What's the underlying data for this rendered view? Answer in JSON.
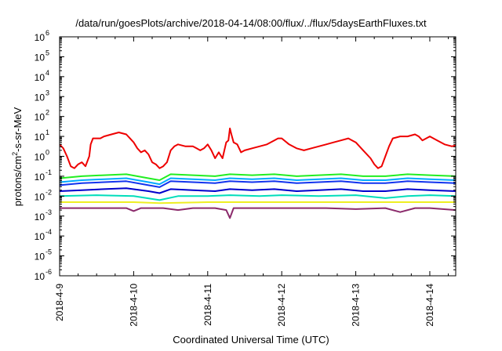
{
  "chart_data": {
    "type": "line",
    "title": "/data/run/goesPlots/archive/2018-04-14/08:00/flux/../flux/5daysEarthFluxes.txt",
    "xlabel": "Coordinated Universal Time (UTC)",
    "ylabel_parts": [
      "protons/cm",
      "2",
      "-s-sr-MeV"
    ],
    "yscale": "log",
    "ylim_exp": [
      -6,
      6
    ],
    "y_ticks": [
      {
        "base": "10",
        "exp": "6"
      },
      {
        "base": "10",
        "exp": "5"
      },
      {
        "base": "10",
        "exp": "4"
      },
      {
        "base": "10",
        "exp": "3"
      },
      {
        "base": "10",
        "exp": "2"
      },
      {
        "base": "10",
        "exp": "1"
      },
      {
        "base": "10",
        "exp": "0"
      },
      {
        "base": "10",
        "exp": "-1"
      },
      {
        "base": "10",
        "exp": "-2"
      },
      {
        "base": "10",
        "exp": "-3"
      },
      {
        "base": "10",
        "exp": "-4"
      },
      {
        "base": "10",
        "exp": "-5"
      },
      {
        "base": "10",
        "exp": "-6"
      }
    ],
    "xlim_days": [
      0,
      5.35
    ],
    "x_ticks": [
      {
        "label": "2018-4-9",
        "day": 0
      },
      {
        "label": "2018-4-10",
        "day": 1
      },
      {
        "label": "2018-4-11",
        "day": 2
      },
      {
        "label": "2018-4-12",
        "day": 3
      },
      {
        "label": "2018-4-13",
        "day": 4
      },
      {
        "label": "2018-4-14",
        "day": 5
      }
    ],
    "grid": false,
    "series": [
      {
        "color": "#ee0000",
        "points": [
          [
            0,
            0.6
          ],
          [
            0.05,
            0.4
          ],
          [
            0.1,
            0
          ],
          [
            0.15,
            -0.5
          ],
          [
            0.2,
            -0.6
          ],
          [
            0.25,
            -0.4
          ],
          [
            0.3,
            -0.3
          ],
          [
            0.35,
            -0.5
          ],
          [
            0.4,
            0
          ],
          [
            0.42,
            0.6
          ],
          [
            0.45,
            0.9
          ],
          [
            0.55,
            0.9
          ],
          [
            0.6,
            1
          ],
          [
            0.7,
            1.1
          ],
          [
            0.8,
            1.2
          ],
          [
            0.9,
            1.1
          ],
          [
            0.95,
            0.9
          ],
          [
            1.0,
            0.7
          ],
          [
            1.05,
            0.4
          ],
          [
            1.1,
            0.2
          ],
          [
            1.15,
            0.3
          ],
          [
            1.2,
            0.1
          ],
          [
            1.25,
            -0.3
          ],
          [
            1.3,
            -0.4
          ],
          [
            1.35,
            -0.6
          ],
          [
            1.4,
            -0.5
          ],
          [
            1.45,
            -0.3
          ],
          [
            1.5,
            0.3
          ],
          [
            1.55,
            0.5
          ],
          [
            1.6,
            0.6
          ],
          [
            1.7,
            0.5
          ],
          [
            1.75,
            0.5
          ],
          [
            1.8,
            0.5
          ],
          [
            1.85,
            0.4
          ],
          [
            1.9,
            0.3
          ],
          [
            1.95,
            0.4
          ],
          [
            2.0,
            0.6
          ],
          [
            2.05,
            0.3
          ],
          [
            2.1,
            -0.1
          ],
          [
            2.15,
            0.2
          ],
          [
            2.2,
            -0.1
          ],
          [
            2.25,
            0.7
          ],
          [
            2.28,
            0.8
          ],
          [
            2.3,
            1.4
          ],
          [
            2.32,
            1.1
          ],
          [
            2.35,
            0.7
          ],
          [
            2.4,
            0.6
          ],
          [
            2.45,
            0.2
          ],
          [
            2.5,
            0.3
          ],
          [
            2.6,
            0.4
          ],
          [
            2.7,
            0.5
          ],
          [
            2.8,
            0.6
          ],
          [
            2.9,
            0.8
          ],
          [
            2.95,
            0.9
          ],
          [
            3.0,
            0.9
          ],
          [
            3.1,
            0.6
          ],
          [
            3.2,
            0.4
          ],
          [
            3.3,
            0.3
          ],
          [
            3.4,
            0.4
          ],
          [
            3.5,
            0.5
          ],
          [
            3.6,
            0.6
          ],
          [
            3.7,
            0.7
          ],
          [
            3.8,
            0.8
          ],
          [
            3.9,
            0.9
          ],
          [
            3.95,
            0.8
          ],
          [
            4.0,
            0.7
          ],
          [
            4.05,
            0.5
          ],
          [
            4.1,
            0.3
          ],
          [
            4.2,
            -0.1
          ],
          [
            4.25,
            -0.4
          ],
          [
            4.3,
            -0.6
          ],
          [
            4.35,
            -0.5
          ],
          [
            4.4,
            0
          ],
          [
            4.45,
            0.5
          ],
          [
            4.5,
            0.9
          ],
          [
            4.6,
            1.0
          ],
          [
            4.7,
            1.0
          ],
          [
            4.8,
            1.1
          ],
          [
            4.85,
            1.0
          ],
          [
            4.9,
            0.8
          ],
          [
            5.0,
            1.0
          ],
          [
            5.1,
            0.8
          ],
          [
            5.2,
            0.6
          ],
          [
            5.3,
            0.5
          ],
          [
            5.35,
            0.55
          ]
        ]
      },
      {
        "color": "#22ee22",
        "points": [
          [
            0,
            -1.1
          ],
          [
            0.3,
            -1.0
          ],
          [
            0.6,
            -0.95
          ],
          [
            0.9,
            -0.9
          ],
          [
            1.2,
            -1.1
          ],
          [
            1.35,
            -1.2
          ],
          [
            1.5,
            -0.9
          ],
          [
            1.8,
            -0.95
          ],
          [
            2.1,
            -1.0
          ],
          [
            2.3,
            -0.9
          ],
          [
            2.6,
            -0.95
          ],
          [
            2.9,
            -0.9
          ],
          [
            3.2,
            -1.0
          ],
          [
            3.5,
            -0.95
          ],
          [
            3.8,
            -0.9
          ],
          [
            4.1,
            -1.0
          ],
          [
            4.4,
            -1.0
          ],
          [
            4.7,
            -0.9
          ],
          [
            5.0,
            -0.95
          ],
          [
            5.35,
            -1.0
          ]
        ]
      },
      {
        "color": "#00aaff",
        "points": [
          [
            0,
            -1.3
          ],
          [
            0.3,
            -1.2
          ],
          [
            0.6,
            -1.15
          ],
          [
            0.9,
            -1.1
          ],
          [
            1.2,
            -1.3
          ],
          [
            1.35,
            -1.4
          ],
          [
            1.5,
            -1.1
          ],
          [
            1.8,
            -1.15
          ],
          [
            2.1,
            -1.2
          ],
          [
            2.3,
            -1.1
          ],
          [
            2.6,
            -1.15
          ],
          [
            2.9,
            -1.1
          ],
          [
            3.2,
            -1.2
          ],
          [
            3.5,
            -1.15
          ],
          [
            3.8,
            -1.1
          ],
          [
            4.1,
            -1.2
          ],
          [
            4.4,
            -1.2
          ],
          [
            4.7,
            -1.1
          ],
          [
            5.0,
            -1.15
          ],
          [
            5.35,
            -1.2
          ]
        ]
      },
      {
        "color": "#1133ee",
        "points": [
          [
            0,
            -1.45
          ],
          [
            0.3,
            -1.35
          ],
          [
            0.6,
            -1.3
          ],
          [
            0.9,
            -1.25
          ],
          [
            1.2,
            -1.45
          ],
          [
            1.35,
            -1.55
          ],
          [
            1.5,
            -1.25
          ],
          [
            1.8,
            -1.3
          ],
          [
            2.1,
            -1.35
          ],
          [
            2.3,
            -1.25
          ],
          [
            2.6,
            -1.3
          ],
          [
            2.9,
            -1.25
          ],
          [
            3.2,
            -1.35
          ],
          [
            3.5,
            -1.3
          ],
          [
            3.8,
            -1.25
          ],
          [
            4.1,
            -1.35
          ],
          [
            4.4,
            -1.35
          ],
          [
            4.7,
            -1.25
          ],
          [
            5.0,
            -1.3
          ],
          [
            5.35,
            -1.35
          ]
        ]
      },
      {
        "color": "#0000cc",
        "points": [
          [
            0,
            -1.75
          ],
          [
            0.3,
            -1.7
          ],
          [
            0.6,
            -1.65
          ],
          [
            0.9,
            -1.6
          ],
          [
            1.2,
            -1.75
          ],
          [
            1.35,
            -1.85
          ],
          [
            1.5,
            -1.65
          ],
          [
            1.8,
            -1.7
          ],
          [
            2.1,
            -1.75
          ],
          [
            2.3,
            -1.65
          ],
          [
            2.6,
            -1.7
          ],
          [
            2.9,
            -1.65
          ],
          [
            3.2,
            -1.75
          ],
          [
            3.5,
            -1.7
          ],
          [
            3.8,
            -1.65
          ],
          [
            4.1,
            -1.75
          ],
          [
            4.4,
            -1.75
          ],
          [
            4.7,
            -1.65
          ],
          [
            5.0,
            -1.7
          ],
          [
            5.35,
            -1.75
          ]
        ]
      },
      {
        "color": "#00ddbb",
        "points": [
          [
            0,
            -2.0
          ],
          [
            0.5,
            -1.95
          ],
          [
            1.0,
            -2.0
          ],
          [
            1.35,
            -2.2
          ],
          [
            1.6,
            -2.0
          ],
          [
            2.0,
            -2.0
          ],
          [
            2.3,
            -1.95
          ],
          [
            2.7,
            -2.0
          ],
          [
            3.0,
            -1.95
          ],
          [
            3.5,
            -2.0
          ],
          [
            4.0,
            -1.95
          ],
          [
            4.4,
            -2.1
          ],
          [
            4.7,
            -2.0
          ],
          [
            5.0,
            -1.95
          ],
          [
            5.35,
            -2.0
          ]
        ]
      },
      {
        "color": "#eeee22",
        "points": [
          [
            0,
            -2.3
          ],
          [
            1.0,
            -2.3
          ],
          [
            1.35,
            -2.35
          ],
          [
            2.0,
            -2.3
          ],
          [
            3.0,
            -2.3
          ],
          [
            4.0,
            -2.3
          ],
          [
            5.0,
            -2.3
          ],
          [
            5.35,
            -2.3
          ]
        ]
      },
      {
        "color": "#8b2a6b",
        "points": [
          [
            0,
            -2.6
          ],
          [
            0.3,
            -2.6
          ],
          [
            0.6,
            -2.6
          ],
          [
            0.9,
            -2.6
          ],
          [
            1.0,
            -2.75
          ],
          [
            1.1,
            -2.6
          ],
          [
            1.4,
            -2.6
          ],
          [
            1.6,
            -2.7
          ],
          [
            1.8,
            -2.6
          ],
          [
            2.1,
            -2.6
          ],
          [
            2.25,
            -2.7
          ],
          [
            2.3,
            -3.1
          ],
          [
            2.35,
            -2.6
          ],
          [
            2.6,
            -2.6
          ],
          [
            2.9,
            -2.6
          ],
          [
            3.2,
            -2.6
          ],
          [
            3.6,
            -2.6
          ],
          [
            4.0,
            -2.65
          ],
          [
            4.4,
            -2.6
          ],
          [
            4.6,
            -2.8
          ],
          [
            4.8,
            -2.6
          ],
          [
            5.0,
            -2.6
          ],
          [
            5.35,
            -2.7
          ]
        ]
      }
    ]
  }
}
